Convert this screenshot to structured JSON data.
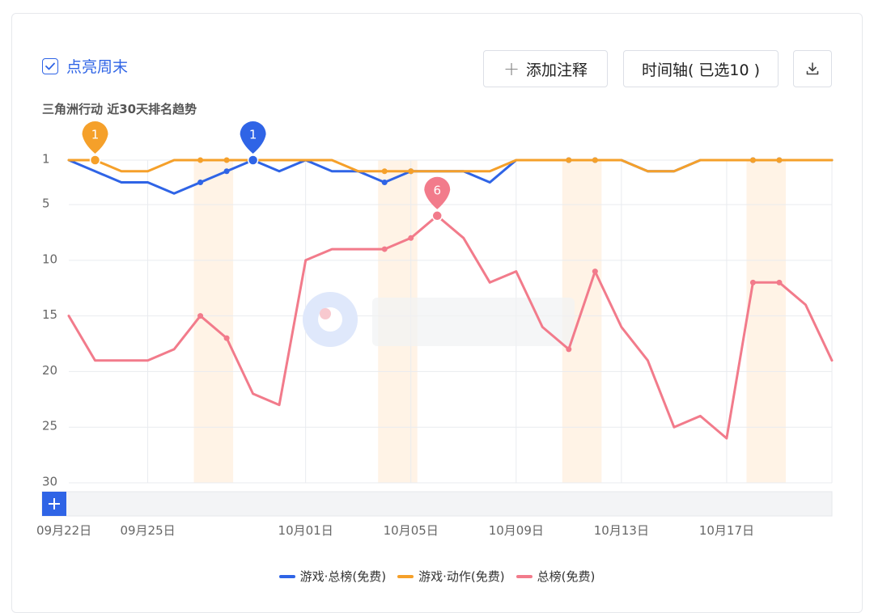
{
  "toolbar": {
    "weekend_toggle_label": "点亮周末",
    "add_note_label": "添加注释",
    "timeline_label": "时间轴( 已选10 )"
  },
  "colors": {
    "accent": "#2f64e6",
    "weekend_band": "#fff3e6",
    "grid": "#e9ebef"
  },
  "icons": {
    "checkbox": "check-icon",
    "add": "plus-icon",
    "download": "download-icon",
    "range_add": "plus-icon"
  },
  "chart_data": {
    "type": "line",
    "title": "三角洲行动 近30天排名趋势",
    "y_inverted": true,
    "ylim": [
      1,
      30
    ],
    "y_ticks": [
      1,
      5,
      10,
      15,
      20,
      25,
      30
    ],
    "x": [
      "09月22日",
      "09月23日",
      "09月24日",
      "09月25日",
      "09月26日",
      "09月27日",
      "09月28日",
      "09月29日",
      "09月30日",
      "10月01日",
      "10月02日",
      "10月03日",
      "10月04日",
      "10月05日",
      "10月06日",
      "10月07日",
      "10月08日",
      "10月09日",
      "10月10日",
      "10月11日",
      "10月12日",
      "10月13日",
      "10月14日",
      "10月15日",
      "10月16日",
      "10月17日",
      "10月18日",
      "10月19日",
      "10月20日",
      "10月21日"
    ],
    "x_tick_labels": [
      "09月22日",
      "09月25日",
      "10月01日",
      "10月05日",
      "10月09日",
      "10月13日",
      "10月17日"
    ],
    "weekend_bands": [
      [
        "09月27日",
        "09月28日"
      ],
      [
        "10月04日",
        "10月05日"
      ],
      [
        "10月11日",
        "10月12日"
      ],
      [
        "10月18日",
        "10月19日"
      ]
    ],
    "grid": true,
    "legend_position": "bottom",
    "series": [
      {
        "name": "游戏·总榜(免费)",
        "color": "#2f64e6",
        "values": [
          1,
          2,
          3,
          3,
          4,
          3,
          2,
          1,
          2,
          1,
          2,
          2,
          3,
          2,
          2,
          2,
          3,
          1,
          1,
          1,
          1,
          1,
          2,
          2,
          1,
          1,
          1,
          1,
          1,
          1
        ],
        "marker": {
          "x": "09月29日",
          "value": 1
        }
      },
      {
        "name": "游戏·动作(免费)",
        "color": "#f5a02a",
        "values": [
          1,
          1,
          2,
          2,
          1,
          1,
          1,
          1,
          1,
          1,
          1,
          2,
          2,
          2,
          2,
          2,
          2,
          1,
          1,
          1,
          1,
          1,
          2,
          2,
          1,
          1,
          1,
          1,
          1,
          1
        ],
        "marker": {
          "x": "09月23日",
          "value": 1
        }
      },
      {
        "name": "总榜(免费)",
        "color": "#f27b8b",
        "values": [
          15,
          19,
          19,
          19,
          18,
          15,
          17,
          22,
          23,
          10,
          9,
          9,
          9,
          8,
          6,
          8,
          12,
          11,
          16,
          18,
          11,
          16,
          19,
          25,
          24,
          26,
          12,
          12,
          14,
          19
        ],
        "marker": {
          "x": "10月06日",
          "value": 6
        }
      }
    ]
  }
}
